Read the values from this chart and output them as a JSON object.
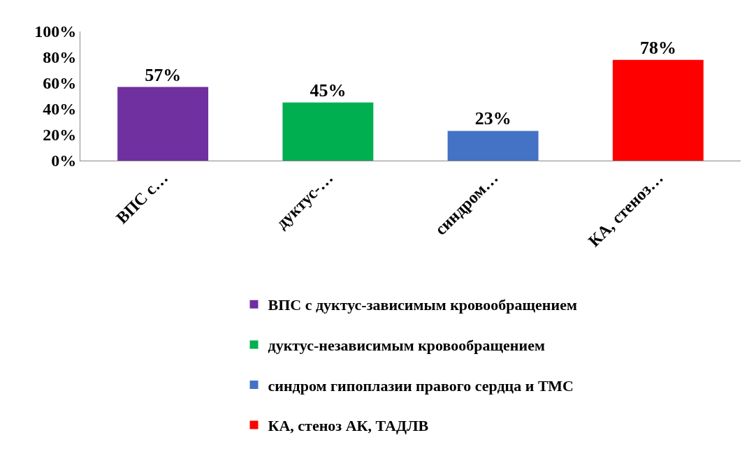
{
  "chart_data": {
    "type": "bar",
    "categories": [
      "ВПС с…",
      "дуктус-…",
      "синдром…",
      "КА, стеноз…"
    ],
    "series": [
      {
        "name": "ВПС с дуктус-зависимым кровообращением",
        "color": "#7030a0",
        "values": [
          57,
          null,
          null,
          null
        ],
        "value_labels": [
          "57%",
          null,
          null,
          null
        ]
      },
      {
        "name": "дуктус-независимым кровообращением",
        "color": "#00b050",
        "values": [
          null,
          45,
          null,
          null
        ],
        "value_labels": [
          null,
          "45%",
          null,
          null
        ]
      },
      {
        "name": "синдром гипоплазии правого сердца и ТМС",
        "color": "#4472c4",
        "values": [
          null,
          null,
          23,
          null
        ],
        "value_labels": [
          null,
          null,
          "23%",
          null
        ]
      },
      {
        "name": "КА, стеноз АК, ТАДЛВ",
        "color": "#ff0000",
        "values": [
          null,
          null,
          null,
          78
        ],
        "value_labels": [
          null,
          null,
          null,
          "78%"
        ]
      }
    ],
    "ylim": [
      0,
      100
    ],
    "yticks": [
      {
        "value": 0,
        "label": "0%"
      },
      {
        "value": 20,
        "label": "20%"
      },
      {
        "value": 40,
        "label": "40%"
      },
      {
        "value": 60,
        "label": "60%"
      },
      {
        "value": 80,
        "label": "80%"
      },
      {
        "value": 100,
        "label": "100%"
      }
    ],
    "legend": "bottom"
  }
}
